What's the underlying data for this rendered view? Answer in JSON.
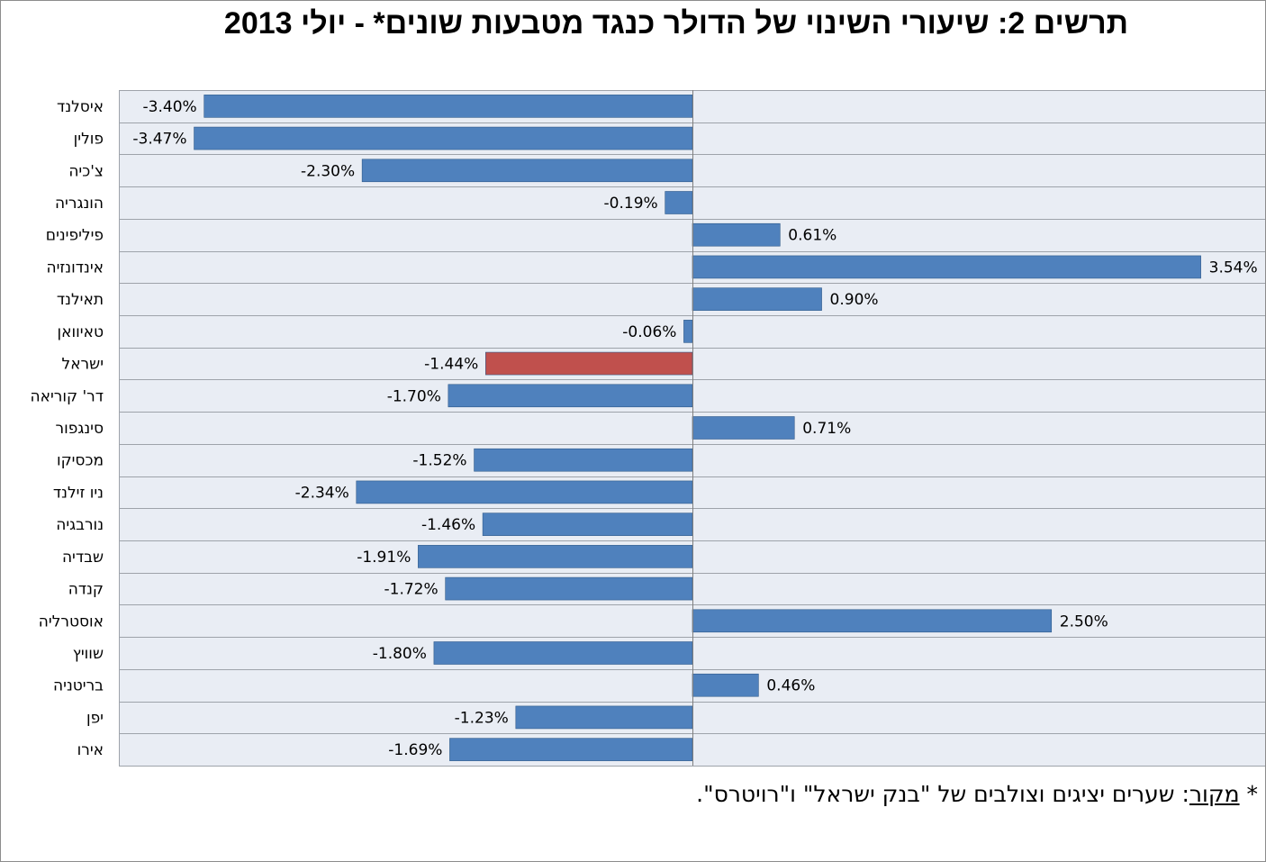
{
  "title": "תרשים 2: שיעורי השינוי של הדולר כנגד מטבעות שונים* - יולי 2013",
  "source": {
    "star": "*",
    "label": "מקור",
    "text": ": שערים יציגים וצולבים של \"בנק ישראל\" ו\"רויטרס\"."
  },
  "colors": {
    "bar": "#4f81bd",
    "highlight": "#c0504d",
    "plot_background": "#e9edf4",
    "gridline": "#9ea3aa"
  },
  "chart_data": {
    "type": "bar",
    "orientation": "horizontal",
    "categories": [
      "איסלנד",
      "פולין",
      "צ'כיה",
      "הונגריה",
      "פיליפינים",
      "אינדונזיה",
      "תאילנד",
      "טאיוואן",
      "ישראל",
      "דר' קוריאה",
      "סינגפור",
      "מכסיקו",
      "ניו זילנד",
      "נורבגיה",
      "שבדיה",
      "קנדה",
      "אוסטרליה",
      "שוויץ",
      "בריטניה",
      "יפן",
      "אירו"
    ],
    "values": [
      -3.4,
      -3.47,
      -2.3,
      -0.19,
      0.61,
      3.54,
      0.9,
      -0.06,
      -1.44,
      -1.7,
      0.71,
      -1.52,
      -2.34,
      -1.46,
      -1.91,
      -1.72,
      2.5,
      -1.8,
      0.46,
      -1.23,
      -1.69
    ],
    "data_labels": [
      "-3.40%",
      "-3.47%",
      "-2.30%",
      "-0.19%",
      "0.61%",
      "3.54%",
      "0.90%",
      "-0.06%",
      "-1.44%",
      "-1.70%",
      "0.71%",
      "-1.52%",
      "-2.34%",
      "-1.46%",
      "-1.91%",
      "-1.72%",
      "2.50%",
      "-1.80%",
      "0.46%",
      "-1.23%",
      "-1.69%"
    ],
    "highlight_category": "ישראל",
    "xlim": [
      -4.0,
      4.0
    ],
    "title": "תרשים 2: שיעורי השינוי של הדולר כנגד מטבעות שונים* - יולי 2013",
    "xlabel": "",
    "ylabel": "",
    "grid": "horizontal lines between categories",
    "legend": "none"
  }
}
